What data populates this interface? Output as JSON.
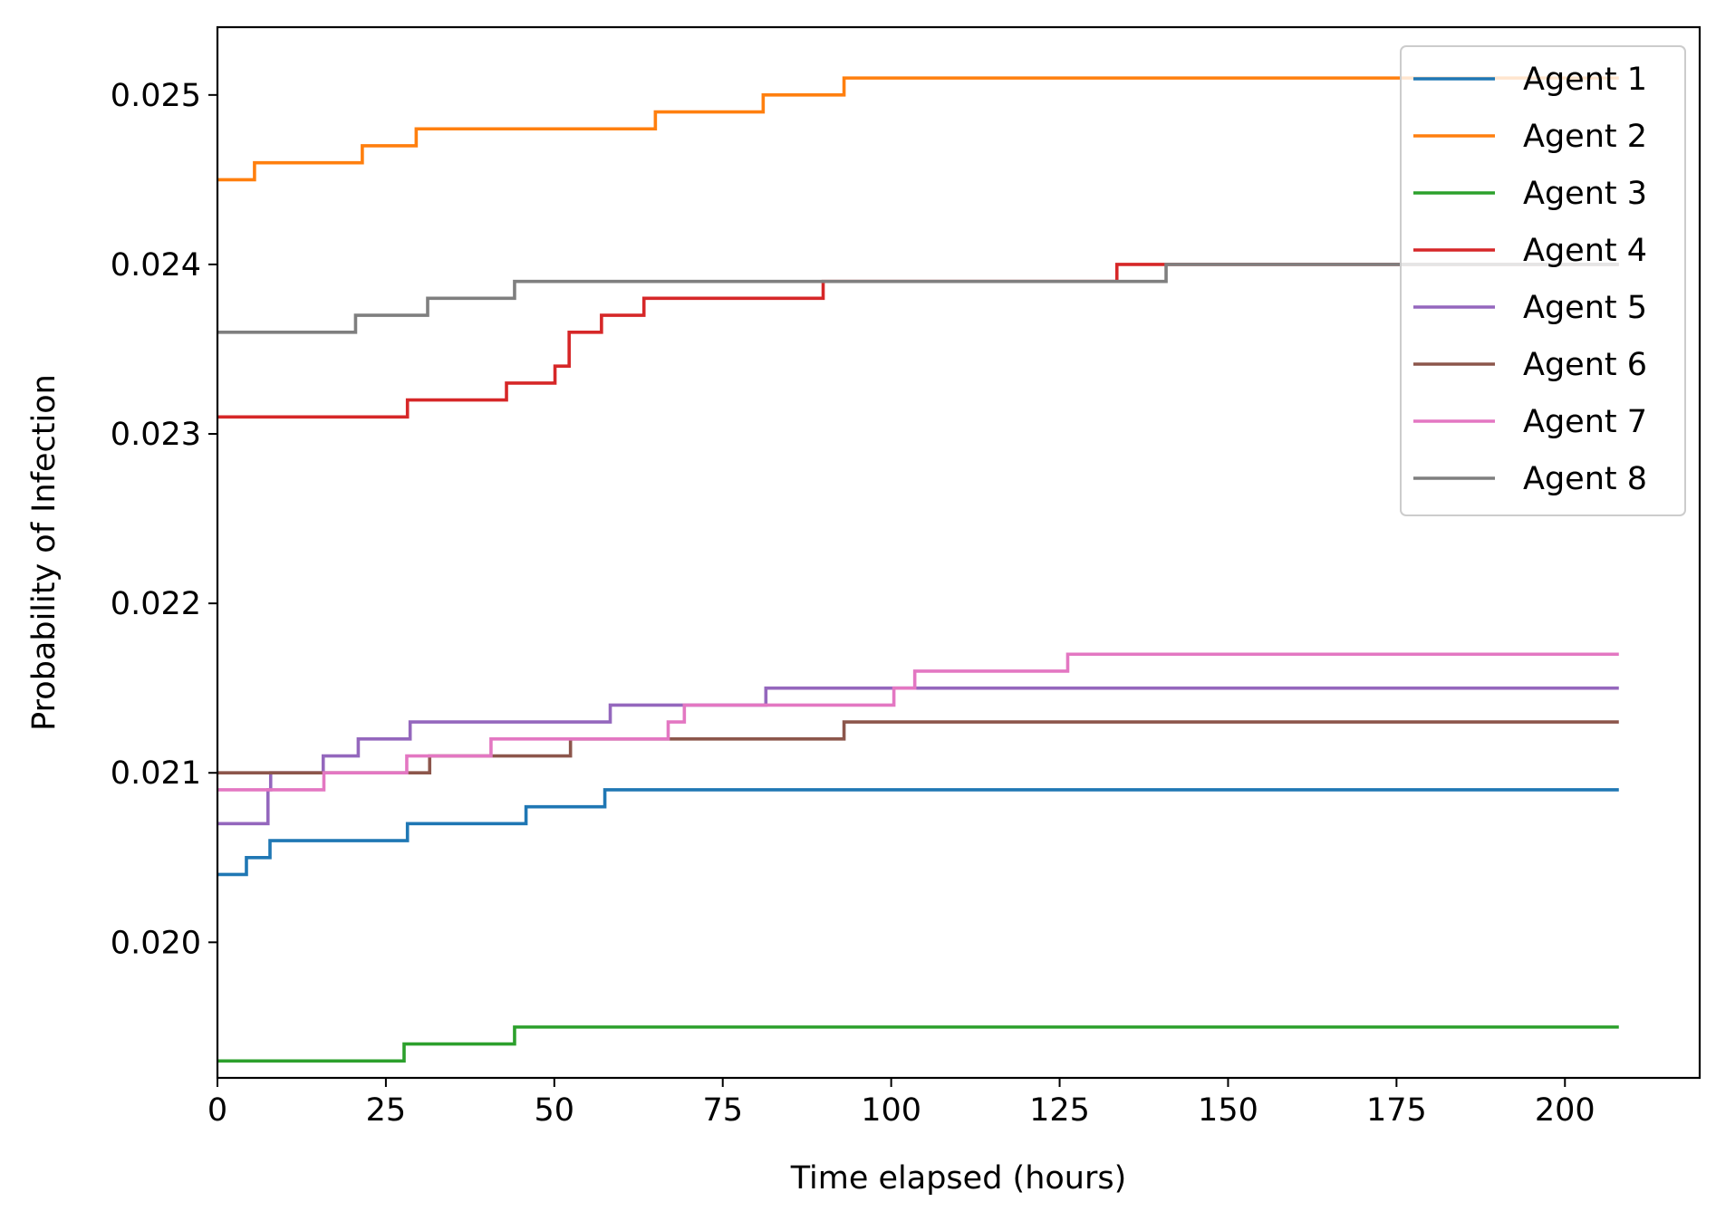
{
  "chart_data": {
    "type": "line",
    "drawstyle": "steps-post",
    "title": "",
    "xlabel": "Time elapsed (hours)",
    "ylabel": "Probability of Infection",
    "xlim": [
      0,
      220
    ],
    "ylim": [
      0.0192,
      0.0254
    ],
    "xticks": [
      0,
      25,
      50,
      75,
      100,
      125,
      150,
      175,
      200
    ],
    "xtick_labels": [
      "0",
      "25",
      "50",
      "75",
      "100",
      "125",
      "150",
      "175",
      "200"
    ],
    "yticks": [
      0.02,
      0.021,
      0.022,
      0.023,
      0.024,
      0.025
    ],
    "ytick_labels": [
      "0.020",
      "0.021",
      "0.022",
      "0.023",
      "0.024",
      "0.025"
    ],
    "grid": false,
    "legend_position": "top-right",
    "series": [
      {
        "name": "Agent 1",
        "color": "#1f77b4",
        "x": [
          0,
          4.3,
          7.8,
          28.2,
          45.8,
          57.5,
          208
        ],
        "y": [
          0.0204,
          0.0205,
          0.0206,
          0.0207,
          0.0208,
          0.0209,
          0.0209
        ]
      },
      {
        "name": "Agent 2",
        "color": "#ff7f0e",
        "x": [
          0,
          5.5,
          21.5,
          29.5,
          65,
          81,
          93,
          208
        ],
        "y": [
          0.0245,
          0.0246,
          0.0247,
          0.0248,
          0.0249,
          0.025,
          0.0251,
          0.0251
        ]
      },
      {
        "name": "Agent 3",
        "color": "#2ca02c",
        "x": [
          0,
          27.7,
          44.1,
          208
        ],
        "y": [
          0.0193,
          0.0194,
          0.0195,
          0.0195
        ]
      },
      {
        "name": "Agent 4",
        "color": "#d62728",
        "x": [
          0,
          28.2,
          42.9,
          50.1,
          52.2,
          57,
          63.3,
          89.9,
          133.5,
          140.8,
          208
        ],
        "y": [
          0.0231,
          0.0232,
          0.0233,
          0.0234,
          0.0236,
          0.0237,
          0.0238,
          0.0239,
          0.024,
          0.024,
          0.024
        ]
      },
      {
        "name": "Agent 5",
        "color": "#9467bd",
        "x": [
          0,
          7.5,
          7.9,
          15.7,
          20.9,
          28.6,
          58.3,
          81.4,
          208
        ],
        "y": [
          0.0207,
          0.0209,
          0.021,
          0.0211,
          0.0212,
          0.0213,
          0.0214,
          0.0215,
          0.0215
        ]
      },
      {
        "name": "Agent 6",
        "color": "#8c564b",
        "x": [
          0,
          31.5,
          52.4,
          93,
          208
        ],
        "y": [
          0.021,
          0.0211,
          0.0212,
          0.0213,
          0.0213
        ]
      },
      {
        "name": "Agent 7",
        "color": "#e377c2",
        "x": [
          0,
          15.8,
          28.1,
          40.6,
          66.9,
          69.3,
          100.4,
          103.5,
          126.2,
          208
        ],
        "y": [
          0.0209,
          0.021,
          0.0211,
          0.0212,
          0.0213,
          0.0214,
          0.0215,
          0.0216,
          0.0217,
          0.0217
        ]
      },
      {
        "name": "Agent 8",
        "color": "#7f7f7f",
        "x": [
          0,
          20.5,
          31.2,
          44.1,
          140.8,
          208
        ],
        "y": [
          0.0236,
          0.0237,
          0.0238,
          0.0239,
          0.024,
          0.024
        ]
      }
    ]
  }
}
